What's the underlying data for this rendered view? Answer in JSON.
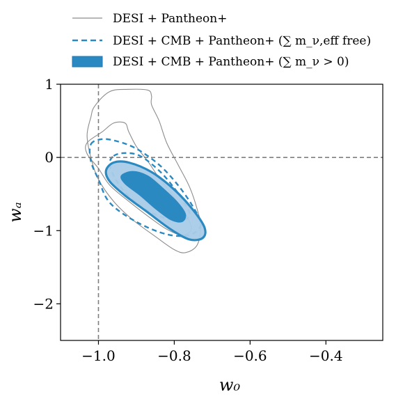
{
  "chart_data": {
    "type": "contour",
    "xlabel": "w₀",
    "ylabel": "wₐ",
    "xlim": [
      -1.1,
      -0.25
    ],
    "ylim": [
      -2.5,
      1.0
    ],
    "xticks": [
      {
        "value": -1.0,
        "label": "−1.0"
      },
      {
        "value": -0.8,
        "label": "−0.8"
      },
      {
        "value": -0.6,
        "label": "−0.6"
      },
      {
        "value": -0.4,
        "label": "−0.4"
      }
    ],
    "yticks": [
      {
        "value": 1,
        "label": "1"
      },
      {
        "value": 0,
        "label": "0"
      },
      {
        "value": -1,
        "label": "−1"
      },
      {
        "value": -2,
        "label": "−2"
      }
    ],
    "reference_lines": {
      "x": -1.0,
      "y": 0.0
    },
    "legend_position": "top",
    "colors": {
      "accent": "#2b89c2",
      "light_fill": "#a9cbe7",
      "gray": "#8c8c8c"
    },
    "series": [
      {
        "name": "DESI + Pantheon+",
        "style": "solid-line",
        "contours": [
          {
            "level": "outer",
            "points": [
              [
                -1.01,
                0.7
              ],
              [
                -0.97,
                0.9
              ],
              [
                -0.92,
                0.93
              ],
              [
                -0.87,
                0.92
              ],
              [
                -0.86,
                0.84
              ],
              [
                -0.86,
                0.72
              ],
              [
                -0.84,
                0.5
              ],
              [
                -0.82,
                0.2
              ],
              [
                -0.79,
                -0.1
              ],
              [
                -0.76,
                -0.4
              ],
              [
                -0.74,
                -0.7
              ],
              [
                -0.73,
                -0.95
              ],
              [
                -0.74,
                -1.2
              ],
              [
                -0.77,
                -1.3
              ],
              [
                -0.8,
                -1.26
              ],
              [
                -0.85,
                -1.08
              ],
              [
                -0.91,
                -0.85
              ],
              [
                -0.96,
                -0.6
              ],
              [
                -1.0,
                -0.3
              ],
              [
                -1.02,
                0.0
              ],
              [
                -1.03,
                0.3
              ],
              [
                -1.02,
                0.55
              ]
            ]
          },
          {
            "level": "inner",
            "points": [
              [
                -1.03,
                0.2
              ],
              [
                -0.99,
                0.35
              ],
              [
                -0.96,
                0.47
              ],
              [
                -0.93,
                0.47
              ],
              [
                -0.92,
                0.35
              ],
              [
                -0.9,
                0.15
              ],
              [
                -0.87,
                -0.05
              ],
              [
                -0.84,
                -0.28
              ],
              [
                -0.8,
                -0.55
              ],
              [
                -0.77,
                -0.78
              ],
              [
                -0.755,
                -0.98
              ],
              [
                -0.78,
                -1.06
              ],
              [
                -0.82,
                -0.98
              ],
              [
                -0.87,
                -0.8
              ],
              [
                -0.92,
                -0.6
              ],
              [
                -0.97,
                -0.38
              ],
              [
                -1.0,
                -0.15
              ],
              [
                -1.03,
                0.05
              ]
            ]
          }
        ]
      },
      {
        "name": "DESI + CMB + Pantheon+ (∑ m_ν,eff free)",
        "style": "dashed-line",
        "contours": [
          {
            "level": "outer",
            "points": [
              [
                -1.02,
                0.18
              ],
              [
                -0.99,
                0.25
              ],
              [
                -0.95,
                0.22
              ],
              [
                -0.9,
                0.12
              ],
              [
                -0.84,
                -0.1
              ],
              [
                -0.79,
                -0.38
              ],
              [
                -0.75,
                -0.68
              ],
              [
                -0.73,
                -0.92
              ],
              [
                -0.76,
                -1.06
              ],
              [
                -0.82,
                -1.05
              ],
              [
                -0.9,
                -0.88
              ],
              [
                -0.97,
                -0.62
              ],
              [
                -1.0,
                -0.3
              ],
              [
                -1.02,
                -0.05
              ]
            ]
          },
          {
            "level": "inner",
            "points": [
              [
                -0.96,
                0.02
              ],
              [
                -0.93,
                0.06
              ],
              [
                -0.89,
                0.02
              ],
              [
                -0.84,
                -0.18
              ],
              [
                -0.8,
                -0.42
              ],
              [
                -0.77,
                -0.65
              ],
              [
                -0.76,
                -0.8
              ],
              [
                -0.79,
                -0.86
              ],
              [
                -0.85,
                -0.78
              ],
              [
                -0.91,
                -0.58
              ],
              [
                -0.95,
                -0.34
              ],
              [
                -0.97,
                -0.1
              ]
            ]
          }
        ]
      },
      {
        "name": "DESI + CMB + Pantheon+ (∑ m_ν > 0)",
        "style": "filled",
        "contours": [
          {
            "level": "outer",
            "points": [
              [
                -0.98,
                -0.18
              ],
              [
                -0.96,
                -0.07
              ],
              [
                -0.92,
                -0.07
              ],
              [
                -0.86,
                -0.2
              ],
              [
                -0.8,
                -0.44
              ],
              [
                -0.75,
                -0.72
              ],
              [
                -0.72,
                -0.96
              ],
              [
                -0.725,
                -1.1
              ],
              [
                -0.76,
                -1.12
              ],
              [
                -0.81,
                -0.98
              ],
              [
                -0.87,
                -0.75
              ],
              [
                -0.93,
                -0.52
              ],
              [
                -0.97,
                -0.33
              ]
            ]
          },
          {
            "level": "inner",
            "points": [
              [
                -0.94,
                -0.25
              ],
              [
                -0.91,
                -0.19
              ],
              [
                -0.87,
                -0.25
              ],
              [
                -0.83,
                -0.42
              ],
              [
                -0.79,
                -0.62
              ],
              [
                -0.77,
                -0.78
              ],
              [
                -0.78,
                -0.88
              ],
              [
                -0.81,
                -0.85
              ],
              [
                -0.85,
                -0.7
              ],
              [
                -0.89,
                -0.52
              ],
              [
                -0.93,
                -0.36
              ]
            ]
          }
        ]
      }
    ]
  }
}
